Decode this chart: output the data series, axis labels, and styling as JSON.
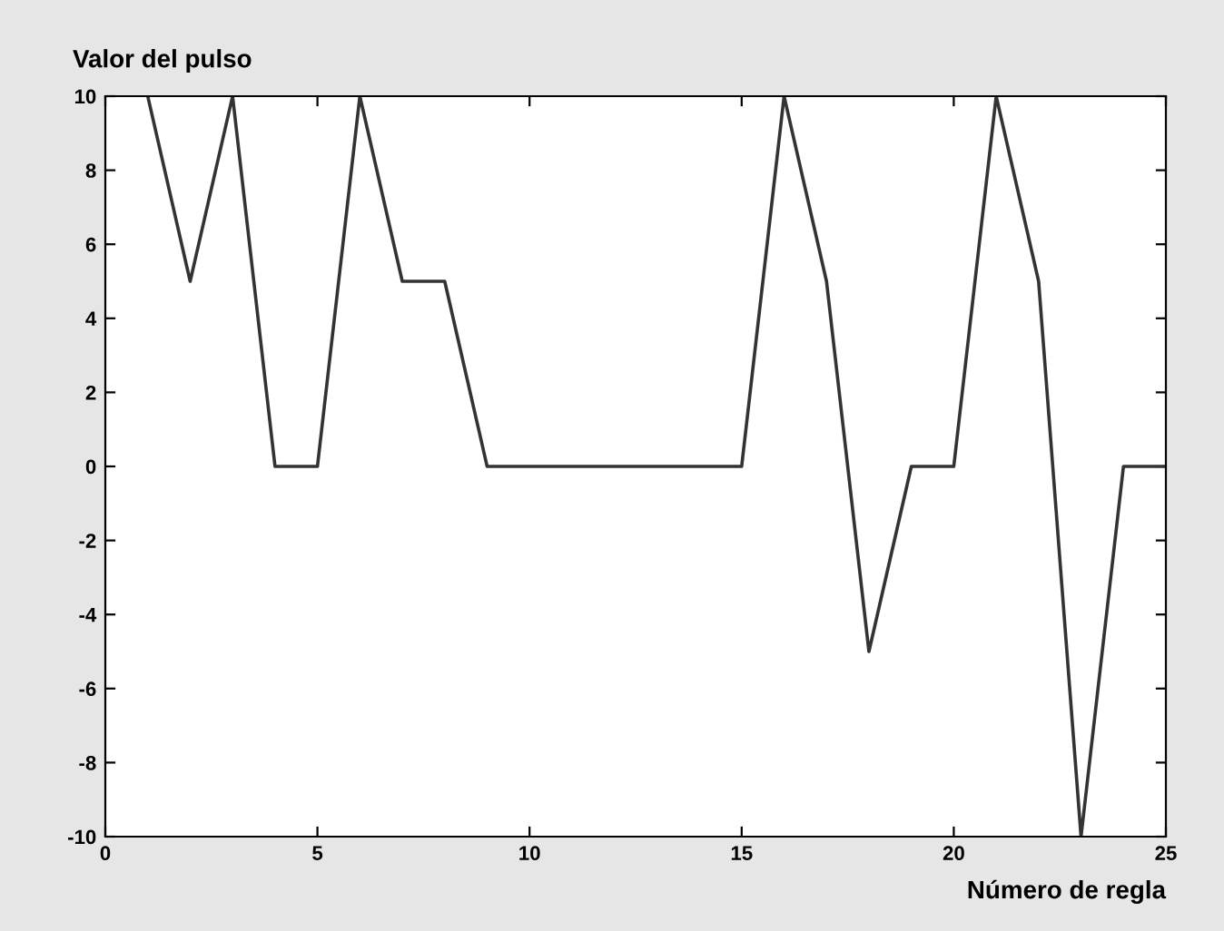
{
  "chart_data": {
    "type": "line",
    "title": "Valor del pulso",
    "xlabel": "Número de regla",
    "x": [
      1,
      2,
      3,
      4,
      5,
      6,
      7,
      8,
      9,
      10,
      11,
      12,
      13,
      14,
      15,
      16,
      17,
      18,
      19,
      20,
      21,
      22,
      23,
      24,
      25
    ],
    "series": [
      {
        "color": "#333333",
        "values": [
          10,
          5,
          10,
          0,
          0,
          10,
          5,
          5,
          0,
          0,
          0,
          0,
          0,
          0,
          0,
          10,
          5,
          -5,
          0,
          0,
          10,
          5,
          -10,
          0,
          0
        ]
      }
    ],
    "xlim": [
      0,
      25
    ],
    "xticks": [
      0,
      5,
      10,
      15,
      20,
      25
    ],
    "ylim": [
      -10,
      10
    ],
    "yticks": [
      -10,
      -8,
      -6,
      -4,
      -2,
      0,
      2,
      4,
      6,
      8,
      10
    ],
    "grid": false,
    "legend": false,
    "marker": "none",
    "line_style": "solid"
  }
}
